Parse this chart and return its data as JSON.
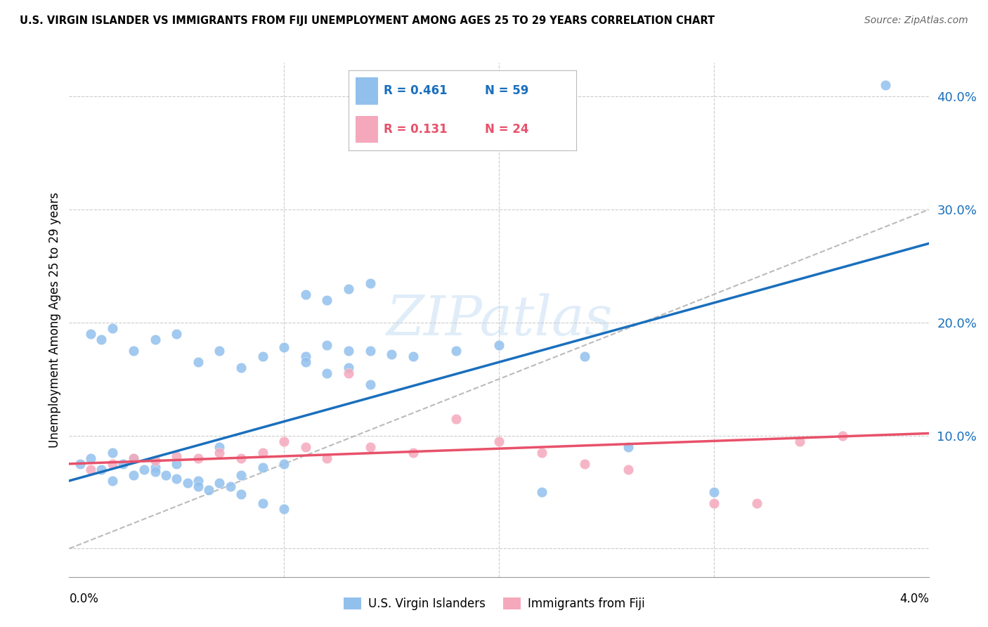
{
  "title": "U.S. VIRGIN ISLANDER VS IMMIGRANTS FROM FIJI UNEMPLOYMENT AMONG AGES 25 TO 29 YEARS CORRELATION CHART",
  "source": "Source: ZipAtlas.com",
  "ylabel": "Unemployment Among Ages 25 to 29 years",
  "xmin": 0.0,
  "xmax": 0.04,
  "ymin": -0.025,
  "ymax": 0.43,
  "right_yticks": [
    0.0,
    0.1,
    0.2,
    0.3,
    0.4
  ],
  "right_yticklabels": [
    "",
    "10.0%",
    "20.0%",
    "30.0%",
    "40.0%"
  ],
  "legend_blue_r": "R = 0.461",
  "legend_blue_n": "N = 59",
  "legend_pink_r": "R = 0.131",
  "legend_pink_n": "N = 24",
  "legend_label_blue": "U.S. Virgin Islanders",
  "legend_label_pink": "Immigrants from Fiji",
  "blue_color": "#92c0ed",
  "pink_color": "#f5a8bc",
  "blue_line_color": "#1a6fbd",
  "pink_line_color": "#e8516a",
  "gray_dash_color": "#bbbbbb",
  "watermark": "ZIPatlas",
  "blue_scatter_x": [
    0.0005,
    0.001,
    0.0015,
    0.002,
    0.002,
    0.0025,
    0.003,
    0.003,
    0.0035,
    0.004,
    0.004,
    0.0045,
    0.005,
    0.005,
    0.0055,
    0.006,
    0.006,
    0.0065,
    0.007,
    0.007,
    0.0075,
    0.008,
    0.008,
    0.009,
    0.009,
    0.01,
    0.01,
    0.011,
    0.011,
    0.012,
    0.012,
    0.013,
    0.013,
    0.014,
    0.014,
    0.015,
    0.001,
    0.0015,
    0.002,
    0.003,
    0.004,
    0.005,
    0.006,
    0.007,
    0.008,
    0.009,
    0.01,
    0.011,
    0.012,
    0.013,
    0.014,
    0.016,
    0.018,
    0.02,
    0.022,
    0.024,
    0.026,
    0.03,
    0.038
  ],
  "blue_scatter_y": [
    0.075,
    0.08,
    0.07,
    0.085,
    0.06,
    0.075,
    0.08,
    0.065,
    0.07,
    0.072,
    0.068,
    0.065,
    0.075,
    0.062,
    0.058,
    0.06,
    0.055,
    0.052,
    0.09,
    0.058,
    0.055,
    0.065,
    0.048,
    0.072,
    0.04,
    0.075,
    0.035,
    0.17,
    0.165,
    0.18,
    0.155,
    0.175,
    0.16,
    0.175,
    0.145,
    0.172,
    0.19,
    0.185,
    0.195,
    0.175,
    0.185,
    0.19,
    0.165,
    0.175,
    0.16,
    0.17,
    0.178,
    0.225,
    0.22,
    0.23,
    0.235,
    0.17,
    0.175,
    0.18,
    0.05,
    0.17,
    0.09,
    0.05,
    0.41
  ],
  "pink_scatter_x": [
    0.001,
    0.002,
    0.003,
    0.004,
    0.005,
    0.006,
    0.007,
    0.008,
    0.009,
    0.01,
    0.011,
    0.012,
    0.013,
    0.014,
    0.016,
    0.018,
    0.02,
    0.022,
    0.024,
    0.026,
    0.03,
    0.032,
    0.034,
    0.036
  ],
  "pink_scatter_y": [
    0.07,
    0.075,
    0.08,
    0.078,
    0.082,
    0.08,
    0.085,
    0.08,
    0.085,
    0.095,
    0.09,
    0.08,
    0.155,
    0.09,
    0.085,
    0.115,
    0.095,
    0.085,
    0.075,
    0.07,
    0.04,
    0.04,
    0.095,
    0.1
  ],
  "blue_line_x0": 0.0,
  "blue_line_x1": 0.04,
  "blue_line_y0": 0.06,
  "blue_line_y1": 0.27,
  "pink_line_x0": 0.0,
  "pink_line_x1": 0.04,
  "pink_line_y0": 0.075,
  "pink_line_y1": 0.102,
  "diag_line_x0": 0.0,
  "diag_line_x1": 0.04,
  "diag_line_y0": 0.0,
  "diag_line_y1": 0.3
}
